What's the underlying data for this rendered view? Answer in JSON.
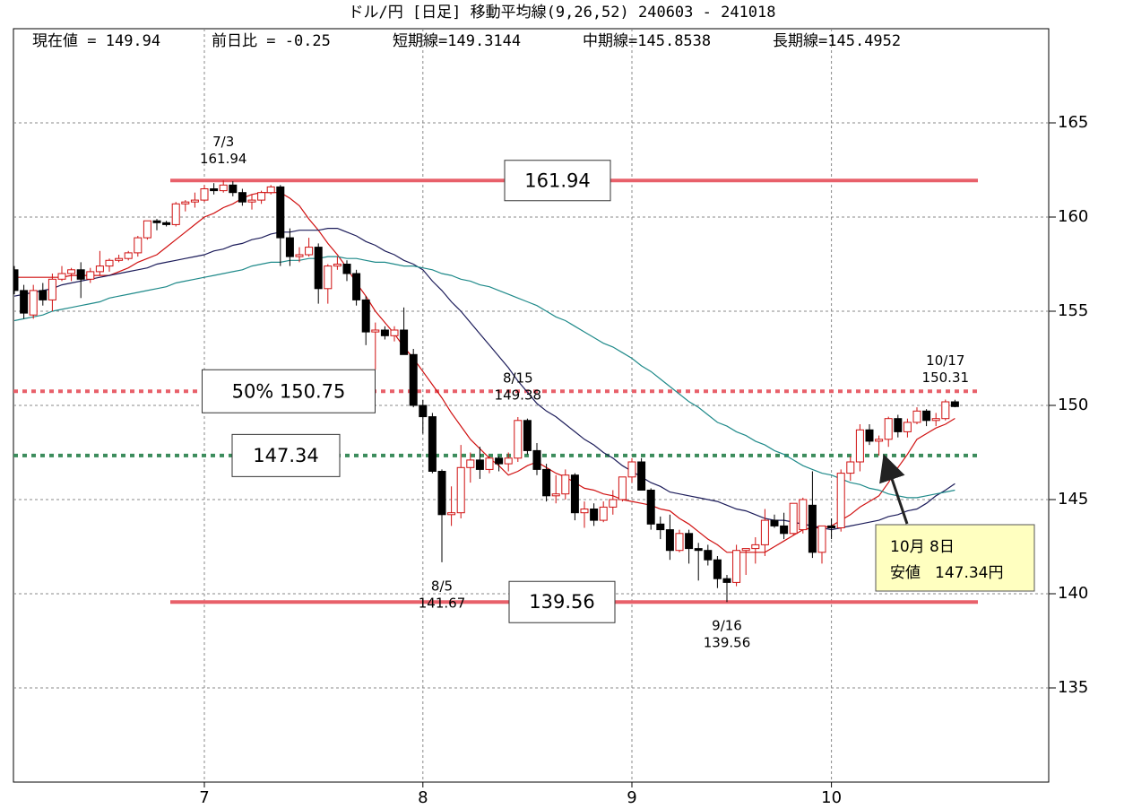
{
  "chart_data": {
    "type": "candlestick",
    "title": "ドル/円 [日足] 移動平均線(9,26,52) 240603 - 241018",
    "stats": [
      {
        "label": "現在値 = ",
        "value": 149.94
      },
      {
        "label": "前日比 = ",
        "value": -0.25
      },
      {
        "label": "短期線=",
        "value": 149.3144
      },
      {
        "label": "中期線=",
        "value": 145.8538
      },
      {
        "label": "長期線=",
        "value": 145.4952
      }
    ],
    "categories": [
      null,
      null,
      null,
      null,
      null,
      null,
      null,
      null,
      null,
      null,
      null,
      null,
      null,
      null,
      null,
      null,
      null,
      null,
      null,
      null,
      "7",
      null,
      null,
      null,
      null,
      null,
      null,
      null,
      null,
      null,
      null,
      null,
      null,
      null,
      null,
      null,
      null,
      null,
      null,
      null,
      null,
      null,
      null,
      "8",
      null,
      null,
      null,
      null,
      null,
      null,
      null,
      null,
      null,
      null,
      null,
      null,
      null,
      null,
      null,
      null,
      null,
      null,
      null,
      null,
      null,
      "9",
      null,
      null,
      null,
      null,
      null,
      null,
      null,
      null,
      null,
      null,
      null,
      null,
      null,
      null,
      null,
      null,
      null,
      null,
      null,
      null,
      "10",
      null,
      null,
      null,
      null,
      null,
      null,
      null,
      null,
      null,
      null,
      null,
      null,
      null
    ],
    "candles": [
      [
        157.2,
        157.4,
        155.9,
        156.1
      ],
      [
        156.1,
        156.4,
        154.6,
        154.9
      ],
      [
        154.8,
        156.4,
        154.6,
        156.1
      ],
      [
        156.1,
        156.5,
        155.3,
        155.6
      ],
      [
        155.6,
        157.0,
        155.0,
        156.7
      ],
      [
        156.7,
        157.4,
        156.6,
        157.0
      ],
      [
        157.0,
        157.3,
        156.6,
        157.2
      ],
      [
        157.2,
        157.6,
        155.7,
        156.7
      ],
      [
        156.7,
        157.3,
        156.5,
        157.1
      ],
      [
        157.1,
        158.2,
        156.9,
        157.4
      ],
      [
        157.4,
        157.8,
        157.1,
        157.7
      ],
      [
        157.7,
        158.0,
        157.6,
        157.8
      ],
      [
        157.8,
        158.2,
        157.7,
        158.1
      ],
      [
        158.1,
        159.0,
        157.9,
        158.9
      ],
      [
        158.9,
        159.8,
        158.8,
        159.8
      ],
      [
        159.8,
        159.9,
        159.3,
        159.7
      ],
      [
        159.7,
        159.8,
        159.5,
        159.6
      ],
      [
        159.6,
        160.8,
        159.5,
        160.7
      ],
      [
        160.7,
        160.9,
        160.3,
        160.8
      ],
      [
        160.8,
        161.3,
        160.5,
        160.9
      ],
      [
        160.9,
        161.7,
        160.8,
        161.5
      ],
      [
        161.5,
        161.8,
        161.2,
        161.4
      ],
      [
        161.4,
        161.94,
        161.3,
        161.7
      ],
      [
        161.7,
        161.9,
        161.1,
        161.3
      ],
      [
        161.3,
        161.5,
        160.6,
        160.8
      ],
      [
        160.8,
        161.2,
        160.4,
        160.9
      ],
      [
        160.9,
        161.4,
        160.7,
        161.3
      ],
      [
        161.3,
        161.7,
        161.2,
        161.6
      ],
      [
        161.6,
        161.7,
        157.4,
        158.9
      ],
      [
        158.9,
        159.4,
        157.4,
        157.9
      ],
      [
        157.9,
        158.4,
        157.6,
        158.0
      ],
      [
        158.0,
        158.9,
        157.9,
        158.4
      ],
      [
        158.4,
        158.6,
        155.4,
        156.2
      ],
      [
        156.2,
        157.5,
        155.4,
        157.4
      ],
      [
        157.4,
        157.9,
        157.2,
        157.5
      ],
      [
        157.5,
        157.7,
        156.6,
        157.0
      ],
      [
        157.0,
        157.2,
        155.3,
        155.6
      ],
      [
        155.6,
        155.8,
        153.2,
        153.9
      ],
      [
        153.9,
        154.4,
        151.9,
        154.0
      ],
      [
        154.0,
        154.2,
        153.5,
        153.7
      ],
      [
        153.7,
        154.2,
        153.4,
        154.0
      ],
      [
        154.0,
        155.2,
        152.7,
        152.7
      ],
      [
        152.7,
        153.0,
        149.9,
        150.0
      ],
      [
        150.0,
        150.3,
        148.5,
        149.4
      ],
      [
        149.4,
        149.6,
        146.4,
        146.5
      ],
      [
        146.5,
        146.6,
        141.67,
        144.2
      ],
      [
        144.2,
        145.7,
        143.6,
        144.3
      ],
      [
        144.3,
        147.9,
        144.0,
        146.7
      ],
      [
        146.7,
        147.5,
        145.9,
        147.1
      ],
      [
        147.1,
        147.8,
        146.1,
        146.6
      ],
      [
        146.6,
        147.3,
        146.4,
        147.2
      ],
      [
        147.2,
        147.3,
        146.5,
        146.9
      ],
      [
        146.9,
        147.5,
        146.5,
        147.2
      ],
      [
        147.2,
        149.38,
        147.0,
        149.2
      ],
      [
        149.2,
        149.3,
        147.4,
        147.6
      ],
      [
        147.6,
        148.0,
        146.3,
        146.6
      ],
      [
        146.6,
        146.9,
        144.9,
        145.2
      ],
      [
        145.2,
        146.3,
        144.8,
        145.3
      ],
      [
        145.3,
        146.6,
        145.0,
        146.3
      ],
      [
        146.3,
        146.4,
        143.9,
        144.3
      ],
      [
        144.3,
        144.9,
        143.5,
        144.5
      ],
      [
        144.5,
        144.8,
        143.6,
        143.9
      ],
      [
        143.9,
        144.9,
        143.8,
        144.6
      ],
      [
        144.6,
        145.5,
        144.2,
        145.0
      ],
      [
        145.0,
        146.2,
        144.9,
        146.2
      ],
      [
        146.2,
        147.2,
        145.9,
        147.0
      ],
      [
        147.0,
        147.2,
        145.5,
        145.5
      ],
      [
        145.5,
        145.6,
        143.4,
        143.7
      ],
      [
        143.7,
        144.1,
        142.9,
        143.4
      ],
      [
        143.4,
        144.2,
        141.8,
        142.3
      ],
      [
        142.3,
        143.4,
        142.2,
        143.2
      ],
      [
        143.2,
        143.4,
        141.6,
        142.4
      ],
      [
        142.4,
        142.7,
        140.7,
        142.3
      ],
      [
        142.3,
        142.6,
        141.5,
        141.8
      ],
      [
        141.8,
        142.0,
        140.3,
        140.8
      ],
      [
        140.8,
        141.0,
        139.56,
        140.6
      ],
      [
        140.6,
        142.6,
        140.4,
        142.3
      ],
      [
        142.3,
        142.4,
        141.0,
        142.4
      ],
      [
        142.4,
        143.0,
        141.6,
        142.6
      ],
      [
        142.6,
        144.5,
        142.0,
        143.9
      ],
      [
        143.9,
        144.2,
        143.5,
        143.6
      ],
      [
        143.6,
        144.3,
        142.9,
        143.2
      ],
      [
        143.2,
        144.8,
        143.1,
        144.8
      ],
      [
        143.4,
        145.1,
        143.2,
        145.0
      ],
      [
        144.7,
        146.5,
        141.9,
        142.2
      ],
      [
        142.2,
        143.6,
        141.6,
        143.6
      ],
      [
        143.6,
        144.0,
        142.9,
        143.5
      ],
      [
        143.5,
        146.6,
        143.3,
        146.4
      ],
      [
        146.4,
        147.3,
        146.0,
        147.0
      ],
      [
        147.0,
        149.0,
        146.5,
        148.7
      ],
      [
        148.7,
        149.0,
        147.9,
        148.1
      ],
      [
        148.1,
        148.4,
        147.34,
        148.2
      ],
      [
        148.2,
        149.4,
        147.8,
        149.3
      ],
      [
        149.3,
        149.5,
        148.3,
        148.6
      ],
      [
        148.6,
        149.3,
        148.3,
        149.1
      ],
      [
        149.1,
        149.9,
        149.0,
        149.7
      ],
      [
        149.7,
        149.8,
        148.9,
        149.2
      ],
      [
        149.2,
        149.6,
        148.9,
        149.3
      ],
      [
        149.3,
        150.31,
        149.2,
        150.19
      ],
      [
        150.19,
        150.3,
        149.9,
        149.94
      ]
    ],
    "up_color": "#d01010",
    "down_color": "#000000",
    "lines": [
      {
        "color": "#d01010",
        "values": [
          156.8,
          156.8,
          156.8,
          156.8,
          156.8,
          156.8,
          156.9,
          156.9,
          156.9,
          156.9,
          156.9,
          157.1,
          157.3,
          157.6,
          157.8,
          158.0,
          158.4,
          158.8,
          159.2,
          159.6,
          160.0,
          160.2,
          160.5,
          160.7,
          161.0,
          161.2,
          161.3,
          161.3,
          161.3,
          161.0,
          160.6,
          159.9,
          159.3,
          158.6,
          158.0,
          157.3,
          156.5,
          155.8,
          155.0,
          154.4,
          153.8,
          153.1,
          152.5,
          151.8,
          151.1,
          150.4,
          149.6,
          148.9,
          148.2,
          147.7,
          147.2,
          146.8,
          146.3,
          146.5,
          146.8,
          147.0,
          146.7,
          146.4,
          146.2,
          145.9,
          145.6,
          145.5,
          145.3,
          145.2,
          145.0,
          144.9,
          144.8,
          144.7,
          144.5,
          144.4,
          144.0,
          143.7,
          143.3,
          142.9,
          142.6,
          142.2,
          142.2,
          142.2,
          142.2,
          142.2,
          142.5,
          142.8,
          143.1,
          143.4,
          143.5,
          143.5,
          143.6,
          143.9,
          144.2,
          144.6,
          144.9,
          145.2,
          145.9,
          146.7,
          147.4,
          148.2,
          148.5,
          148.8,
          149.0,
          149.31
        ]
      },
      {
        "color": "#1c1c5a",
        "values": [
          155.8,
          155.9,
          156.0,
          156.1,
          156.2,
          156.4,
          156.5,
          156.6,
          156.7,
          156.8,
          156.9,
          157.0,
          157.1,
          157.2,
          157.3,
          157.5,
          157.6,
          157.7,
          157.8,
          157.9,
          158.0,
          158.2,
          158.3,
          158.5,
          158.6,
          158.8,
          158.9,
          159.1,
          159.2,
          159.2,
          159.3,
          159.3,
          159.3,
          159.4,
          159.4,
          159.2,
          159.0,
          158.7,
          158.5,
          158.2,
          158.0,
          157.7,
          157.5,
          157.2,
          156.6,
          156.1,
          155.5,
          155.0,
          154.4,
          153.8,
          153.2,
          152.6,
          152.0,
          151.3,
          150.7,
          150.1,
          149.7,
          149.4,
          149.0,
          148.6,
          148.2,
          147.9,
          147.5,
          147.2,
          146.8,
          146.5,
          146.2,
          145.9,
          145.7,
          145.4,
          145.3,
          145.2,
          145.1,
          145.0,
          144.9,
          144.7,
          144.5,
          144.4,
          144.2,
          144.0,
          143.9,
          143.9,
          143.8,
          143.7,
          143.6,
          143.5,
          143.4,
          143.5,
          143.6,
          143.7,
          143.8,
          143.9,
          144.1,
          144.2,
          144.4,
          144.5,
          144.8,
          145.2,
          145.5,
          145.85
        ]
      },
      {
        "color": "#1f8a8a",
        "values": [
          154.5,
          154.6,
          154.7,
          154.8,
          155.0,
          155.1,
          155.2,
          155.3,
          155.4,
          155.5,
          155.7,
          155.8,
          155.9,
          156.0,
          156.1,
          156.2,
          156.3,
          156.5,
          156.6,
          156.7,
          156.8,
          156.9,
          157.0,
          157.1,
          157.2,
          157.4,
          157.5,
          157.6,
          157.6,
          157.7,
          157.7,
          157.8,
          157.8,
          157.9,
          157.9,
          157.8,
          157.8,
          157.7,
          157.6,
          157.6,
          157.5,
          157.4,
          157.4,
          157.3,
          157.2,
          157.0,
          156.9,
          156.7,
          156.6,
          156.4,
          156.3,
          156.1,
          155.9,
          155.7,
          155.5,
          155.3,
          155.0,
          154.7,
          154.5,
          154.2,
          153.9,
          153.6,
          153.3,
          153.1,
          152.8,
          152.5,
          152.1,
          151.8,
          151.4,
          151.0,
          150.6,
          150.2,
          149.9,
          149.5,
          149.1,
          148.9,
          148.6,
          148.4,
          148.1,
          147.9,
          147.6,
          147.4,
          147.1,
          146.8,
          146.6,
          146.4,
          146.3,
          146.1,
          145.9,
          145.8,
          145.6,
          145.5,
          145.3,
          145.2,
          145.1,
          145.1,
          145.2,
          145.3,
          145.4,
          145.5
        ]
      }
    ],
    "hlines": [
      {
        "value": 161.94,
        "color": "#e8606a",
        "style": "solid"
      },
      {
        "value": 139.56,
        "color": "#e8606a",
        "style": "solid"
      },
      {
        "value": 150.75,
        "label": "50%   150.75",
        "color": "#e8606a",
        "style": "dotted"
      },
      {
        "value": 147.34,
        "color": "#3c8c5c",
        "style": "dotted"
      }
    ],
    "point_labels": [
      {
        "date": "7/3",
        "value": 161.94
      },
      {
        "date": "8/15",
        "value": 149.38
      },
      {
        "date": "8/5",
        "value": 141.67
      },
      {
        "date": "9/16",
        "value": 139.56
      },
      {
        "date": "10/17",
        "value": 150.31
      }
    ],
    "callout": {
      "date": "10月 8日",
      "label": "安値",
      "value": 147.34,
      "unit": "円",
      "color": "#ffffc0"
    },
    "ylim": [
      130,
      170
    ],
    "yticks": [
      135,
      140,
      145,
      150,
      155,
      160,
      165
    ],
    "grid": true
  }
}
